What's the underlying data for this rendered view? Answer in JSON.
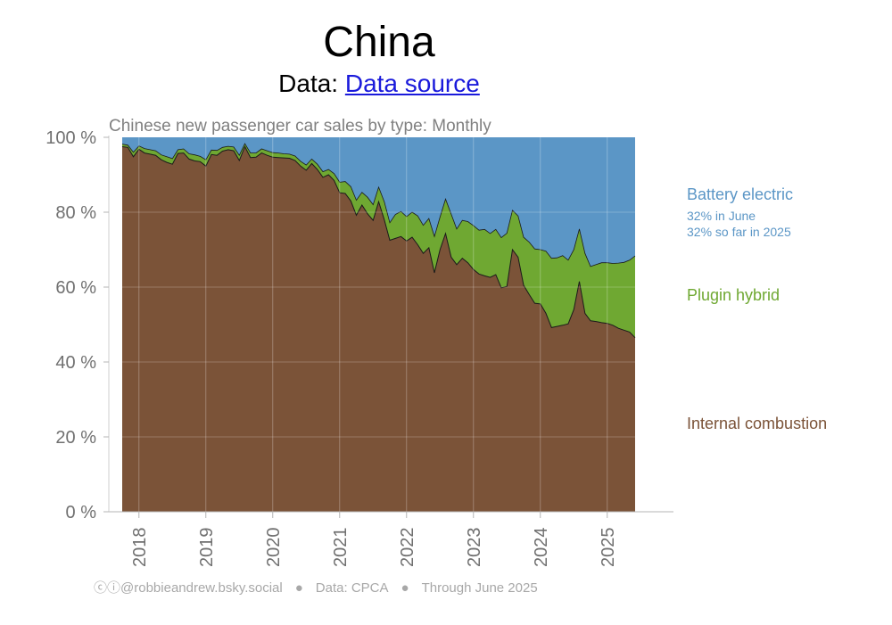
{
  "header": {
    "title": "China",
    "subtitle_prefix": "Data: ",
    "source_link": "Data source"
  },
  "legend": {
    "bev": "Battery electric",
    "bev_note_1": "32% in June",
    "bev_note_2": "32% so far in 2025",
    "phev": "Plugin hybrid",
    "ice": "Internal combustion"
  },
  "footer": {
    "credit": "@robbieandrew.bsky.social",
    "data": "Data: CPCA",
    "through": "Through June 2025"
  },
  "colors": {
    "bev": "#5b96c6",
    "phev": "#6fa832",
    "ice": "#7b5338",
    "axis_text": "#707070"
  },
  "chart_data": {
    "type": "area",
    "title": "Chinese new passenger car sales by type: Monthly",
    "stacked": true,
    "x_start": "2017-10",
    "x_end": "2025-06",
    "x_tick_labels": [
      "2018",
      "2019",
      "2020",
      "2021",
      "2022",
      "2023",
      "2024",
      "2025"
    ],
    "ylim": [
      0,
      100
    ],
    "y_tick_labels": [
      "0 %",
      "20 %",
      "40 %",
      "60 %",
      "80 %",
      "100 %"
    ],
    "grid": true,
    "series": [
      {
        "name": "Internal combustion",
        "upper_boundary_percent": [
          {
            "x": "2017-10",
            "y": 97.5
          },
          {
            "x": "2017-11",
            "y": 97.3
          },
          {
            "x": "2017-12",
            "y": 94.8
          },
          {
            "x": "2018-01",
            "y": 96.8
          },
          {
            "x": "2018-02",
            "y": 95.8
          },
          {
            "x": "2018-03",
            "y": 95.5
          },
          {
            "x": "2018-04",
            "y": 95.2
          },
          {
            "x": "2018-05",
            "y": 94.0
          },
          {
            "x": "2018-06",
            "y": 93.3
          },
          {
            "x": "2018-07",
            "y": 92.8
          },
          {
            "x": "2018-08",
            "y": 95.7
          },
          {
            "x": "2018-09",
            "y": 95.8
          },
          {
            "x": "2018-10",
            "y": 94.2
          },
          {
            "x": "2018-11",
            "y": 93.7
          },
          {
            "x": "2018-12",
            "y": 93.5
          },
          {
            "x": "2019-01",
            "y": 92.3
          },
          {
            "x": "2019-02",
            "y": 95.4
          },
          {
            "x": "2019-03",
            "y": 95.2
          },
          {
            "x": "2019-04",
            "y": 96.3
          },
          {
            "x": "2019-05",
            "y": 96.7
          },
          {
            "x": "2019-06",
            "y": 96.4
          },
          {
            "x": "2019-07",
            "y": 93.8
          },
          {
            "x": "2019-08",
            "y": 97.5
          },
          {
            "x": "2019-09",
            "y": 94.6
          },
          {
            "x": "2019-10",
            "y": 94.7
          },
          {
            "x": "2019-11",
            "y": 95.8
          },
          {
            "x": "2019-12",
            "y": 95.2
          },
          {
            "x": "2020-01",
            "y": 94.7
          },
          {
            "x": "2020-02",
            "y": 94.6
          },
          {
            "x": "2020-03",
            "y": 94.5
          },
          {
            "x": "2020-04",
            "y": 94.4
          },
          {
            "x": "2020-05",
            "y": 93.8
          },
          {
            "x": "2020-06",
            "y": 92.3
          },
          {
            "x": "2020-07",
            "y": 91.2
          },
          {
            "x": "2020-08",
            "y": 93.0
          },
          {
            "x": "2020-09",
            "y": 91.4
          },
          {
            "x": "2020-10",
            "y": 89.3
          },
          {
            "x": "2020-11",
            "y": 90.0
          },
          {
            "x": "2020-12",
            "y": 88.5
          },
          {
            "x": "2021-01",
            "y": 85.2
          },
          {
            "x": "2021-02",
            "y": 85.0
          },
          {
            "x": "2021-03",
            "y": 83.0
          },
          {
            "x": "2021-04",
            "y": 79.2
          },
          {
            "x": "2021-05",
            "y": 81.9
          },
          {
            "x": "2021-06",
            "y": 79.6
          },
          {
            "x": "2021-07",
            "y": 77.8
          },
          {
            "x": "2021-08",
            "y": 82.8
          },
          {
            "x": "2021-09",
            "y": 78.0
          },
          {
            "x": "2021-10",
            "y": 72.5
          },
          {
            "x": "2021-11",
            "y": 73.0
          },
          {
            "x": "2021-12",
            "y": 73.5
          },
          {
            "x": "2022-01",
            "y": 72.3
          },
          {
            "x": "2022-02",
            "y": 73.3
          },
          {
            "x": "2022-03",
            "y": 71.3
          },
          {
            "x": "2022-04",
            "y": 69.0
          },
          {
            "x": "2022-05",
            "y": 70.5
          },
          {
            "x": "2022-06",
            "y": 63.8
          },
          {
            "x": "2022-07",
            "y": 70.0
          },
          {
            "x": "2022-08",
            "y": 74.3
          },
          {
            "x": "2022-09",
            "y": 68.0
          },
          {
            "x": "2022-10",
            "y": 66.0
          },
          {
            "x": "2022-11",
            "y": 67.7
          },
          {
            "x": "2022-12",
            "y": 66.5
          },
          {
            "x": "2023-01",
            "y": 64.7
          },
          {
            "x": "2023-02",
            "y": 63.5
          },
          {
            "x": "2023-03",
            "y": 63.0
          },
          {
            "x": "2023-04",
            "y": 62.6
          },
          {
            "x": "2023-05",
            "y": 63.3
          },
          {
            "x": "2023-06",
            "y": 59.8
          },
          {
            "x": "2023-07",
            "y": 60.2
          },
          {
            "x": "2023-08",
            "y": 70.0
          },
          {
            "x": "2023-09",
            "y": 68.0
          },
          {
            "x": "2023-10",
            "y": 60.5
          },
          {
            "x": "2023-11",
            "y": 58.0
          },
          {
            "x": "2023-12",
            "y": 55.7
          },
          {
            "x": "2024-01",
            "y": 55.5
          },
          {
            "x": "2024-02",
            "y": 53.0
          },
          {
            "x": "2024-03",
            "y": 49.2
          },
          {
            "x": "2024-04",
            "y": 49.5
          },
          {
            "x": "2024-05",
            "y": 49.8
          },
          {
            "x": "2024-06",
            "y": 50.2
          },
          {
            "x": "2024-07",
            "y": 54.0
          },
          {
            "x": "2024-08",
            "y": 61.5
          },
          {
            "x": "2024-09",
            "y": 53.0
          },
          {
            "x": "2024-10",
            "y": 51.0
          },
          {
            "x": "2024-11",
            "y": 50.8
          },
          {
            "x": "2024-12",
            "y": 50.5
          },
          {
            "x": "2025-01",
            "y": 50.3
          },
          {
            "x": "2025-02",
            "y": 49.8
          },
          {
            "x": "2025-03",
            "y": 49.0
          },
          {
            "x": "2025-04",
            "y": 48.5
          },
          {
            "x": "2025-05",
            "y": 48.0
          },
          {
            "x": "2025-06",
            "y": 46.5
          }
        ]
      },
      {
        "name": "Plugin hybrid",
        "upper_boundary_percent": [
          {
            "x": "2017-10",
            "y": 98.2
          },
          {
            "x": "2017-11",
            "y": 97.9
          },
          {
            "x": "2017-12",
            "y": 96.0
          },
          {
            "x": "2018-01",
            "y": 97.7
          },
          {
            "x": "2018-02",
            "y": 97.0
          },
          {
            "x": "2018-03",
            "y": 96.7
          },
          {
            "x": "2018-04",
            "y": 96.4
          },
          {
            "x": "2018-05",
            "y": 95.3
          },
          {
            "x": "2018-06",
            "y": 94.8
          },
          {
            "x": "2018-07",
            "y": 94.3
          },
          {
            "x": "2018-08",
            "y": 96.7
          },
          {
            "x": "2018-09",
            "y": 96.9
          },
          {
            "x": "2018-10",
            "y": 95.6
          },
          {
            "x": "2018-11",
            "y": 95.3
          },
          {
            "x": "2018-12",
            "y": 94.9
          },
          {
            "x": "2019-01",
            "y": 94.0
          },
          {
            "x": "2019-02",
            "y": 96.6
          },
          {
            "x": "2019-03",
            "y": 96.5
          },
          {
            "x": "2019-04",
            "y": 97.3
          },
          {
            "x": "2019-05",
            "y": 97.6
          },
          {
            "x": "2019-06",
            "y": 97.4
          },
          {
            "x": "2019-07",
            "y": 95.2
          },
          {
            "x": "2019-08",
            "y": 98.3
          },
          {
            "x": "2019-09",
            "y": 95.8
          },
          {
            "x": "2019-10",
            "y": 95.8
          },
          {
            "x": "2019-11",
            "y": 96.9
          },
          {
            "x": "2019-12",
            "y": 96.4
          },
          {
            "x": "2020-01",
            "y": 95.9
          },
          {
            "x": "2020-02",
            "y": 95.8
          },
          {
            "x": "2020-03",
            "y": 95.6
          },
          {
            "x": "2020-04",
            "y": 95.5
          },
          {
            "x": "2020-05",
            "y": 95.0
          },
          {
            "x": "2020-06",
            "y": 93.6
          },
          {
            "x": "2020-07",
            "y": 92.6
          },
          {
            "x": "2020-08",
            "y": 94.2
          },
          {
            "x": "2020-09",
            "y": 92.8
          },
          {
            "x": "2020-10",
            "y": 90.8
          },
          {
            "x": "2020-11",
            "y": 91.4
          },
          {
            "x": "2020-12",
            "y": 90.3
          },
          {
            "x": "2021-01",
            "y": 88.0
          },
          {
            "x": "2021-02",
            "y": 88.2
          },
          {
            "x": "2021-03",
            "y": 86.8
          },
          {
            "x": "2021-04",
            "y": 83.2
          },
          {
            "x": "2021-05",
            "y": 85.3
          },
          {
            "x": "2021-06",
            "y": 84.0
          },
          {
            "x": "2021-07",
            "y": 82.0
          },
          {
            "x": "2021-08",
            "y": 86.7
          },
          {
            "x": "2021-09",
            "y": 82.8
          },
          {
            "x": "2021-10",
            "y": 77.2
          },
          {
            "x": "2021-11",
            "y": 79.4
          },
          {
            "x": "2021-12",
            "y": 80.2
          },
          {
            "x": "2022-01",
            "y": 78.8
          },
          {
            "x": "2022-02",
            "y": 80.0
          },
          {
            "x": "2022-03",
            "y": 79.0
          },
          {
            "x": "2022-04",
            "y": 76.5
          },
          {
            "x": "2022-05",
            "y": 78.3
          },
          {
            "x": "2022-06",
            "y": 73.5
          },
          {
            "x": "2022-07",
            "y": 78.7
          },
          {
            "x": "2022-08",
            "y": 83.5
          },
          {
            "x": "2022-09",
            "y": 79.5
          },
          {
            "x": "2022-10",
            "y": 75.5
          },
          {
            "x": "2022-11",
            "y": 77.8
          },
          {
            "x": "2022-12",
            "y": 77.5
          },
          {
            "x": "2023-01",
            "y": 76.4
          },
          {
            "x": "2023-02",
            "y": 75.2
          },
          {
            "x": "2023-03",
            "y": 75.4
          },
          {
            "x": "2023-04",
            "y": 74.3
          },
          {
            "x": "2023-05",
            "y": 75.4
          },
          {
            "x": "2023-06",
            "y": 73.2
          },
          {
            "x": "2023-07",
            "y": 74.4
          },
          {
            "x": "2023-08",
            "y": 80.5
          },
          {
            "x": "2023-09",
            "y": 79.0
          },
          {
            "x": "2023-10",
            "y": 73.3
          },
          {
            "x": "2023-11",
            "y": 72.0
          },
          {
            "x": "2023-12",
            "y": 70.2
          },
          {
            "x": "2024-01",
            "y": 70.0
          },
          {
            "x": "2024-02",
            "y": 69.6
          },
          {
            "x": "2024-03",
            "y": 67.7
          },
          {
            "x": "2024-04",
            "y": 67.8
          },
          {
            "x": "2024-05",
            "y": 68.4
          },
          {
            "x": "2024-06",
            "y": 67.2
          },
          {
            "x": "2024-07",
            "y": 70.0
          },
          {
            "x": "2024-08",
            "y": 75.5
          },
          {
            "x": "2024-09",
            "y": 69.0
          },
          {
            "x": "2024-10",
            "y": 65.5
          },
          {
            "x": "2024-11",
            "y": 66.0
          },
          {
            "x": "2024-12",
            "y": 66.5
          },
          {
            "x": "2025-01",
            "y": 66.5
          },
          {
            "x": "2025-02",
            "y": 66.3
          },
          {
            "x": "2025-03",
            "y": 66.4
          },
          {
            "x": "2025-04",
            "y": 66.6
          },
          {
            "x": "2025-05",
            "y": 67.2
          },
          {
            "x": "2025-06",
            "y": 68.3
          }
        ]
      },
      {
        "name": "Battery electric",
        "upper_boundary_percent": "100"
      }
    ]
  }
}
